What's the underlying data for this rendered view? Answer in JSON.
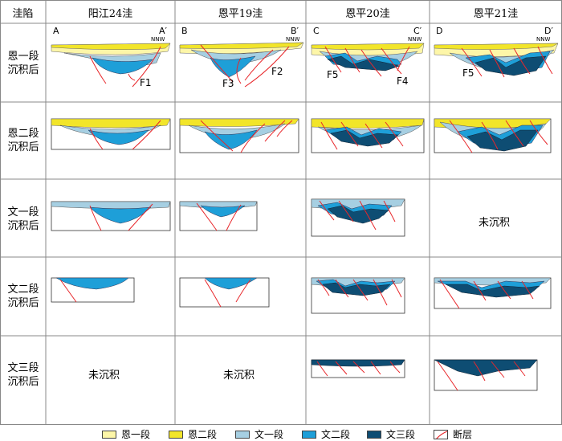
{
  "header": {
    "col0": "洼陷",
    "cols": [
      "阳江24洼",
      "恩平19洼",
      "恩平20洼",
      "恩平21洼"
    ]
  },
  "rows": [
    "恩一段沉积后",
    "恩二段沉积后",
    "文一段沉积后",
    "文二段沉积后",
    "文三段沉积后"
  ],
  "section_labels": {
    "a": [
      "A",
      "A′"
    ],
    "b": [
      "B",
      "B′"
    ],
    "c": [
      "C",
      "C′"
    ],
    "d": [
      "D",
      "D′"
    ],
    "direction": "NNW"
  },
  "faults": {
    "f1": "F1",
    "f2": "F2",
    "f3": "F3",
    "f4": "F4",
    "f5a": "F5",
    "f5b": "F5"
  },
  "not_deposited": "未沉积",
  "legend": [
    {
      "label": "恩一段",
      "color": "#fdf6a8"
    },
    {
      "label": "恩二段",
      "color": "#f2e52a"
    },
    {
      "label": "文一段",
      "color": "#a6cfe2"
    },
    {
      "label": "文二段",
      "color": "#1e9fd8"
    },
    {
      "label": "文三段",
      "color": "#0e4d73"
    },
    {
      "label": "断层",
      "color": "#e8262a"
    }
  ]
}
